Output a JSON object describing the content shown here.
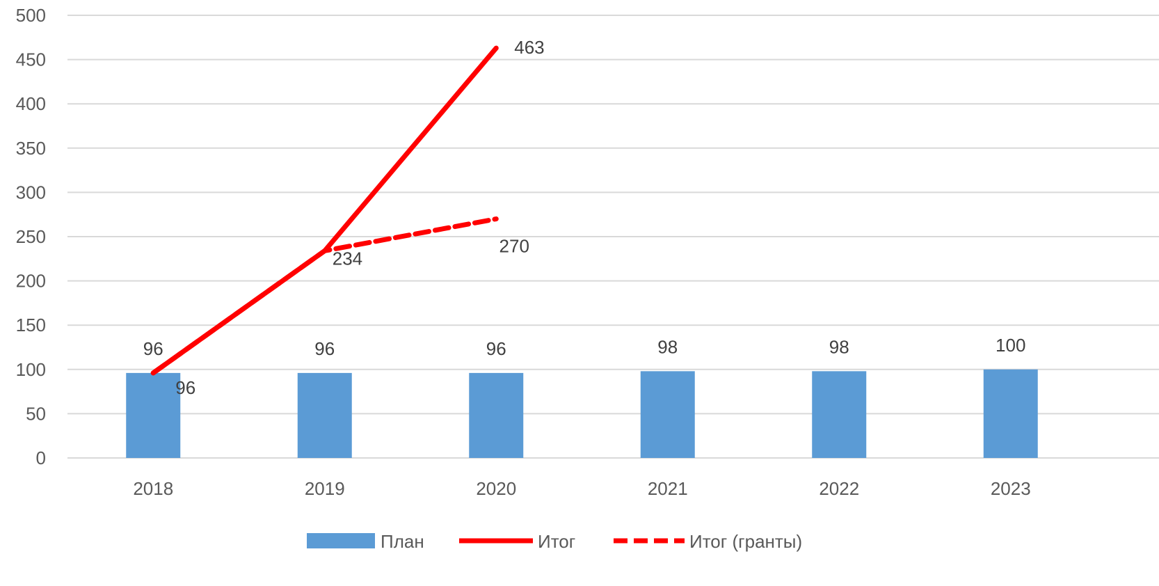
{
  "chart_data": {
    "type": "bar",
    "categories": [
      "2018",
      "2019",
      "2020",
      "2021",
      "2022",
      "2023"
    ],
    "ylim": [
      0,
      500
    ],
    "yticks": [
      0,
      50,
      100,
      150,
      200,
      250,
      300,
      350,
      400,
      450,
      500
    ],
    "grid": true,
    "legend_position": "bottom",
    "series": [
      {
        "name": "План",
        "type": "bar",
        "color": "#5b9bd5",
        "values": [
          96,
          96,
          96,
          98,
          98,
          100
        ],
        "labels": [
          "96",
          "96",
          "96",
          "98",
          "98",
          "100"
        ]
      },
      {
        "name": "Итог",
        "type": "line",
        "style": "solid",
        "color": "#ff0000",
        "values": [
          96,
          234,
          463,
          null,
          null,
          null
        ],
        "labels": [
          "96",
          "234",
          "463"
        ]
      },
      {
        "name": "Итог (гранты)",
        "type": "line",
        "style": "dashed",
        "color": "#ff0000",
        "values": [
          96,
          234,
          270,
          null,
          null,
          null
        ],
        "labels": [
          "270"
        ]
      }
    ]
  }
}
